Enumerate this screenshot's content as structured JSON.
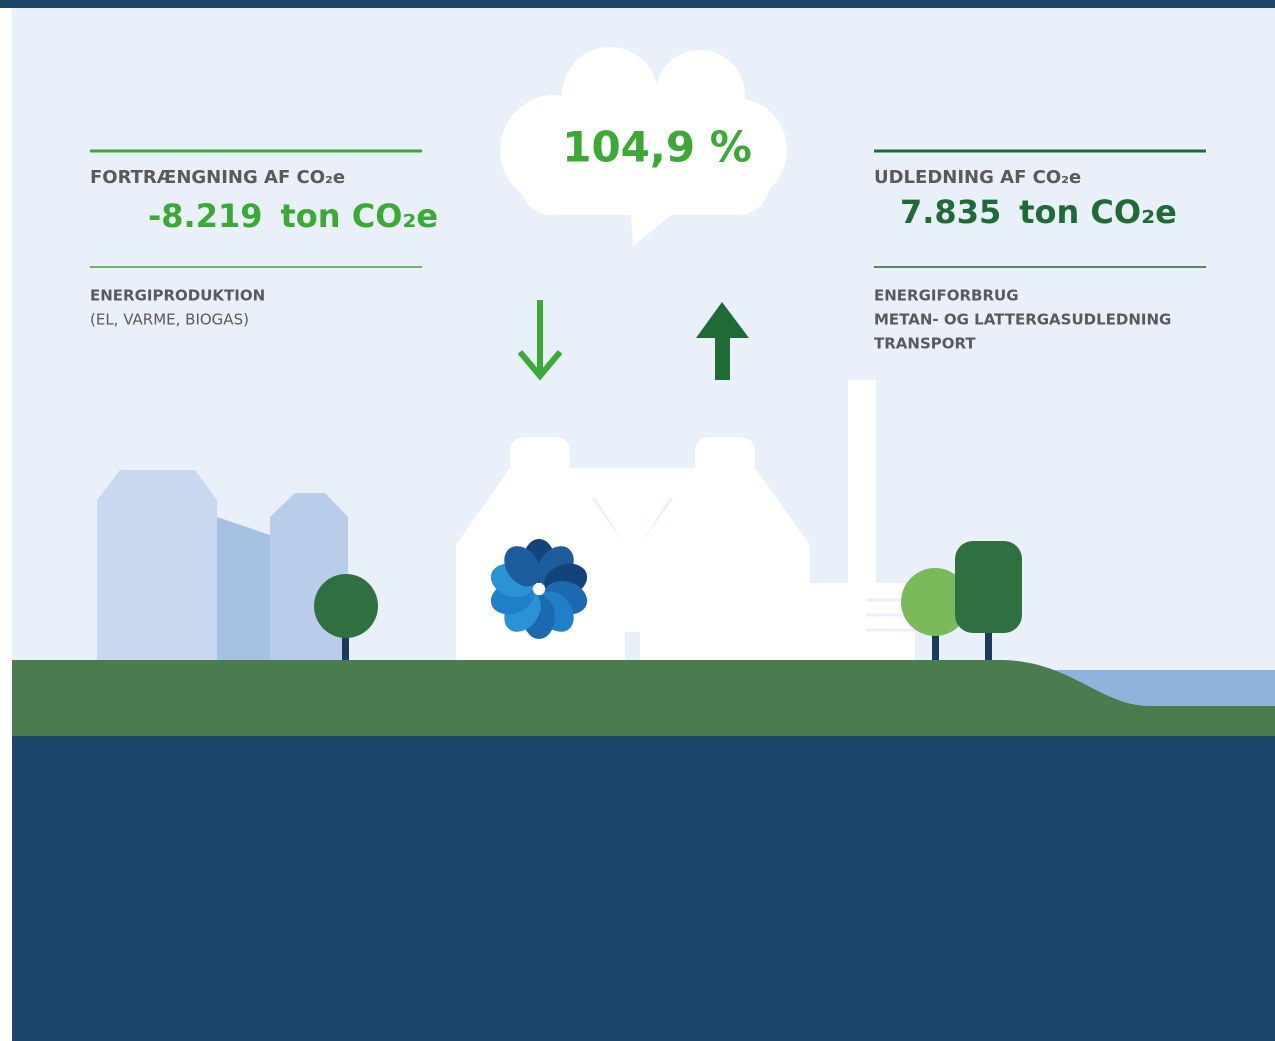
{
  "left": {
    "heading": "FORTRÆNGNING AF CO₂e",
    "value": "-8.219",
    "unit": "ton CO₂e",
    "sources": [
      "ENERGIPRODUKTION",
      "(EL, VARME, BIOGAS)"
    ]
  },
  "center": {
    "ratio": "104,9 %"
  },
  "right": {
    "heading": "UDLEDNING AF CO₂e",
    "value": "7.835",
    "unit": "ton CO₂e",
    "sources": [
      "ENERGIFORBRUG",
      "METAN- OG LATTERGASUDLEDNING",
      "TRANSPORT"
    ]
  }
}
